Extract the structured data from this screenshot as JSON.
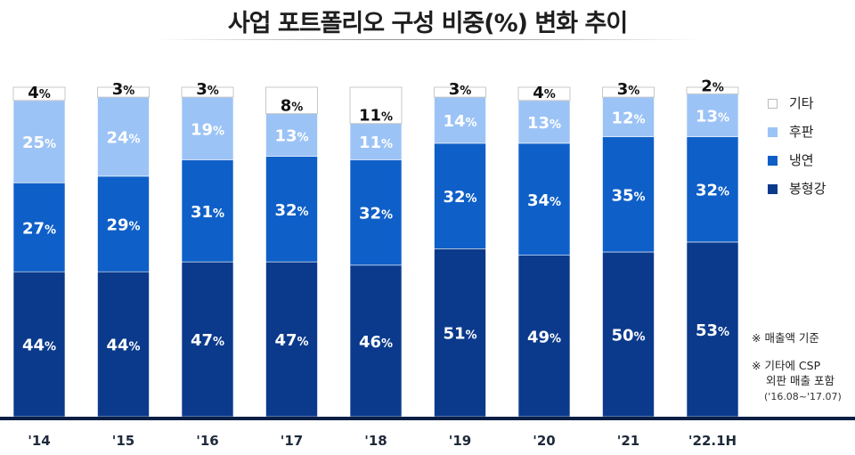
{
  "title": "사업 포트폴리오 구성 비중(%) 변화 추이",
  "legend": [
    {
      "label": "기타",
      "color": "#ffffff"
    },
    {
      "label": "후판",
      "color": "#9cc3f5"
    },
    {
      "label": "냉연",
      "color": "#0f5fc8"
    },
    {
      "label": "봉형강",
      "color": "#0b3a8c"
    }
  ],
  "notes": {
    "note1": "※ 매출액 기준",
    "note2_line1": "※ 기타에 CSP",
    "note2_line2": "외판 매출 포함",
    "note2_line3": "('16.08~'17.07)"
  },
  "colors": {
    "etc": "#ffffff",
    "plate": "#9cc3f5",
    "coldrolled": "#0f5fc8",
    "bar_steel": "#0b3a8c",
    "baseline": "#0a1f44"
  },
  "chart_data": {
    "type": "bar",
    "stacked": true,
    "title": "사업 포트폴리오 구성 비중(%) 변화 추이",
    "categories": [
      "'14",
      "'15",
      "'16",
      "'17",
      "'18",
      "'19",
      "'20",
      "'21",
      "'22.1H"
    ],
    "series": [
      {
        "name": "봉형강",
        "values": [
          44,
          44,
          47,
          47,
          46,
          51,
          49,
          50,
          53
        ]
      },
      {
        "name": "냉연",
        "values": [
          27,
          29,
          31,
          32,
          32,
          32,
          34,
          35,
          32
        ]
      },
      {
        "name": "후판",
        "values": [
          25,
          24,
          19,
          13,
          11,
          14,
          13,
          12,
          13
        ]
      },
      {
        "name": "기타",
        "values": [
          4,
          3,
          3,
          8,
          11,
          3,
          4,
          3,
          2
        ]
      }
    ],
    "label_suffix": "%",
    "ylim": [
      0,
      100
    ],
    "grid": false,
    "legend_position": "right"
  }
}
